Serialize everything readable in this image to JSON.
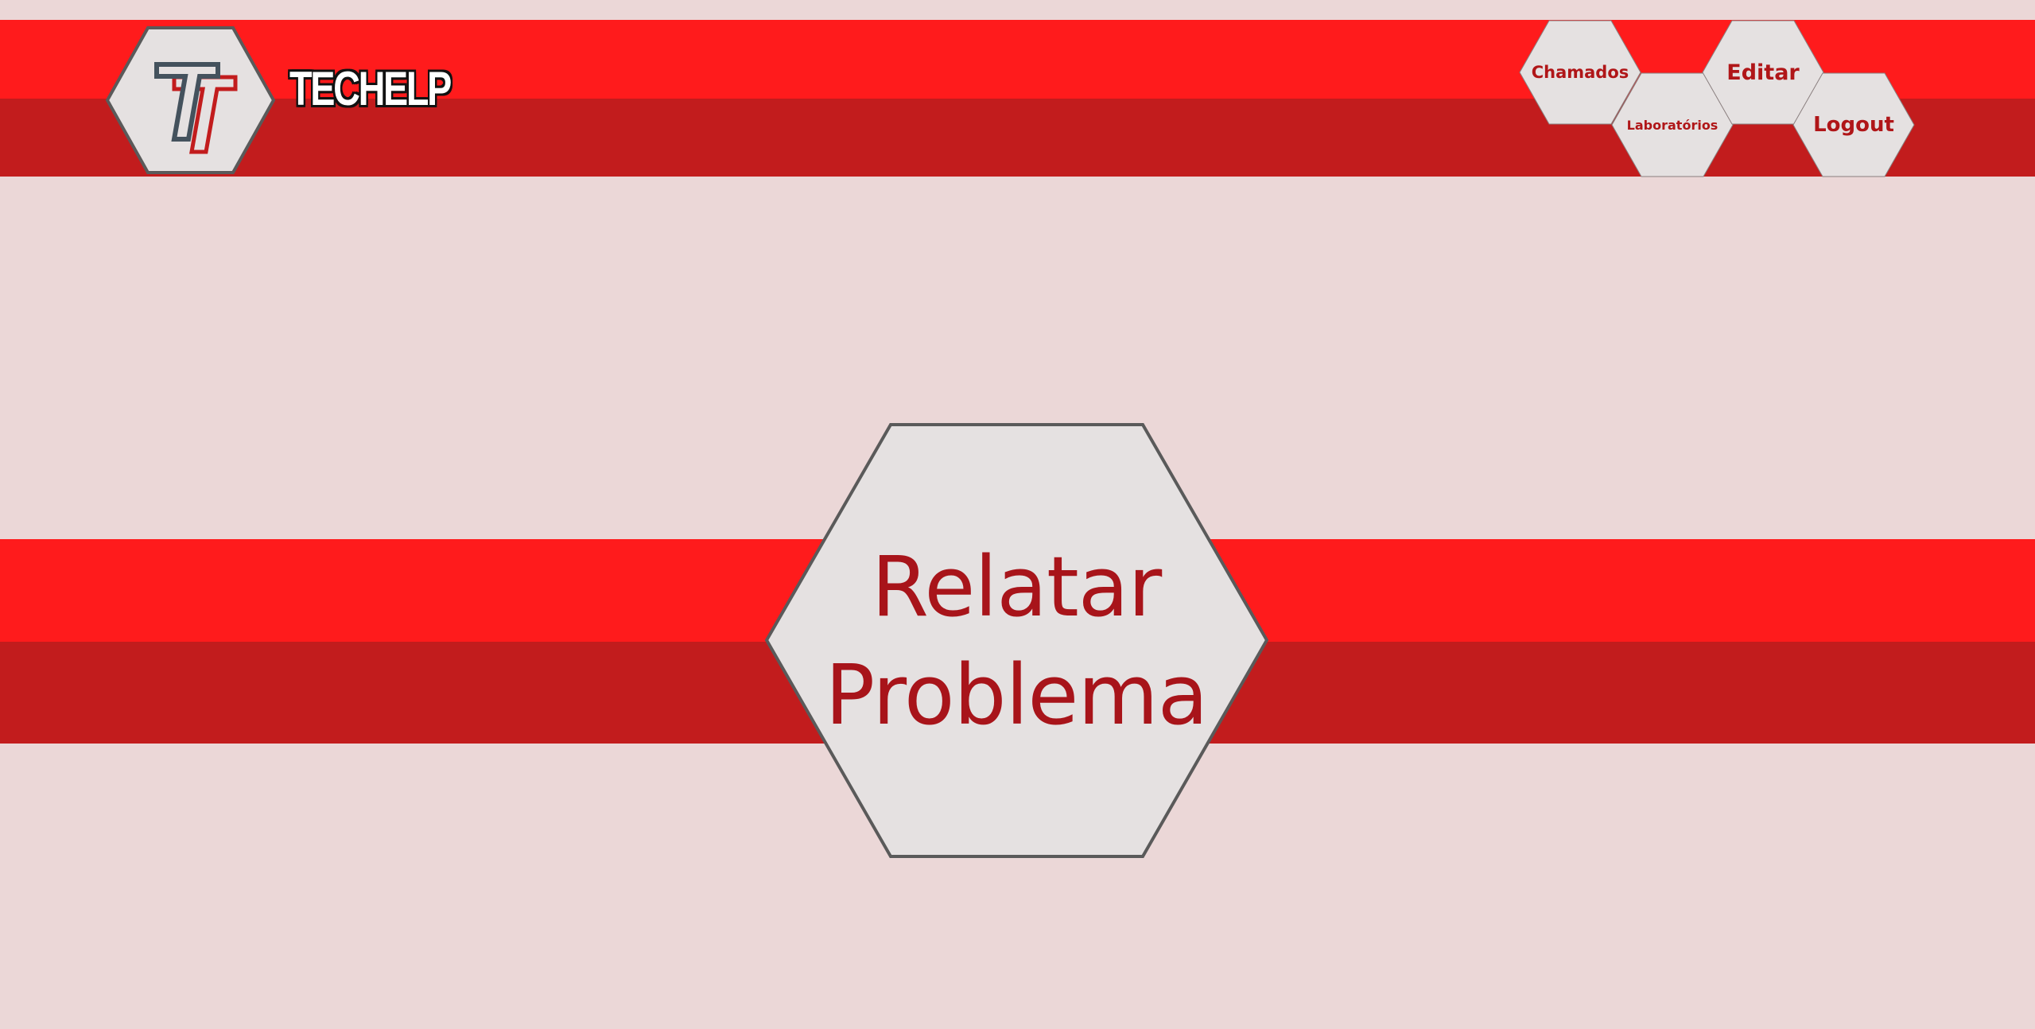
{
  "brand": {
    "name": "TECHELP",
    "logo_letter": "T"
  },
  "nav": {
    "items": [
      {
        "label": "Chamados"
      },
      {
        "label": "Laboratórios"
      },
      {
        "label": "Editar"
      },
      {
        "label": "Logout"
      }
    ]
  },
  "main": {
    "action_line1": "Relatar",
    "action_line2": "Problema"
  },
  "colors": {
    "background": "#ebd7d7",
    "band_light": "#ff1b1c",
    "band_dark": "#c21c1d",
    "hex_fill": "#e5e1e1",
    "hex_border": "#5a5a5a",
    "accent_text": "#a8141a"
  }
}
